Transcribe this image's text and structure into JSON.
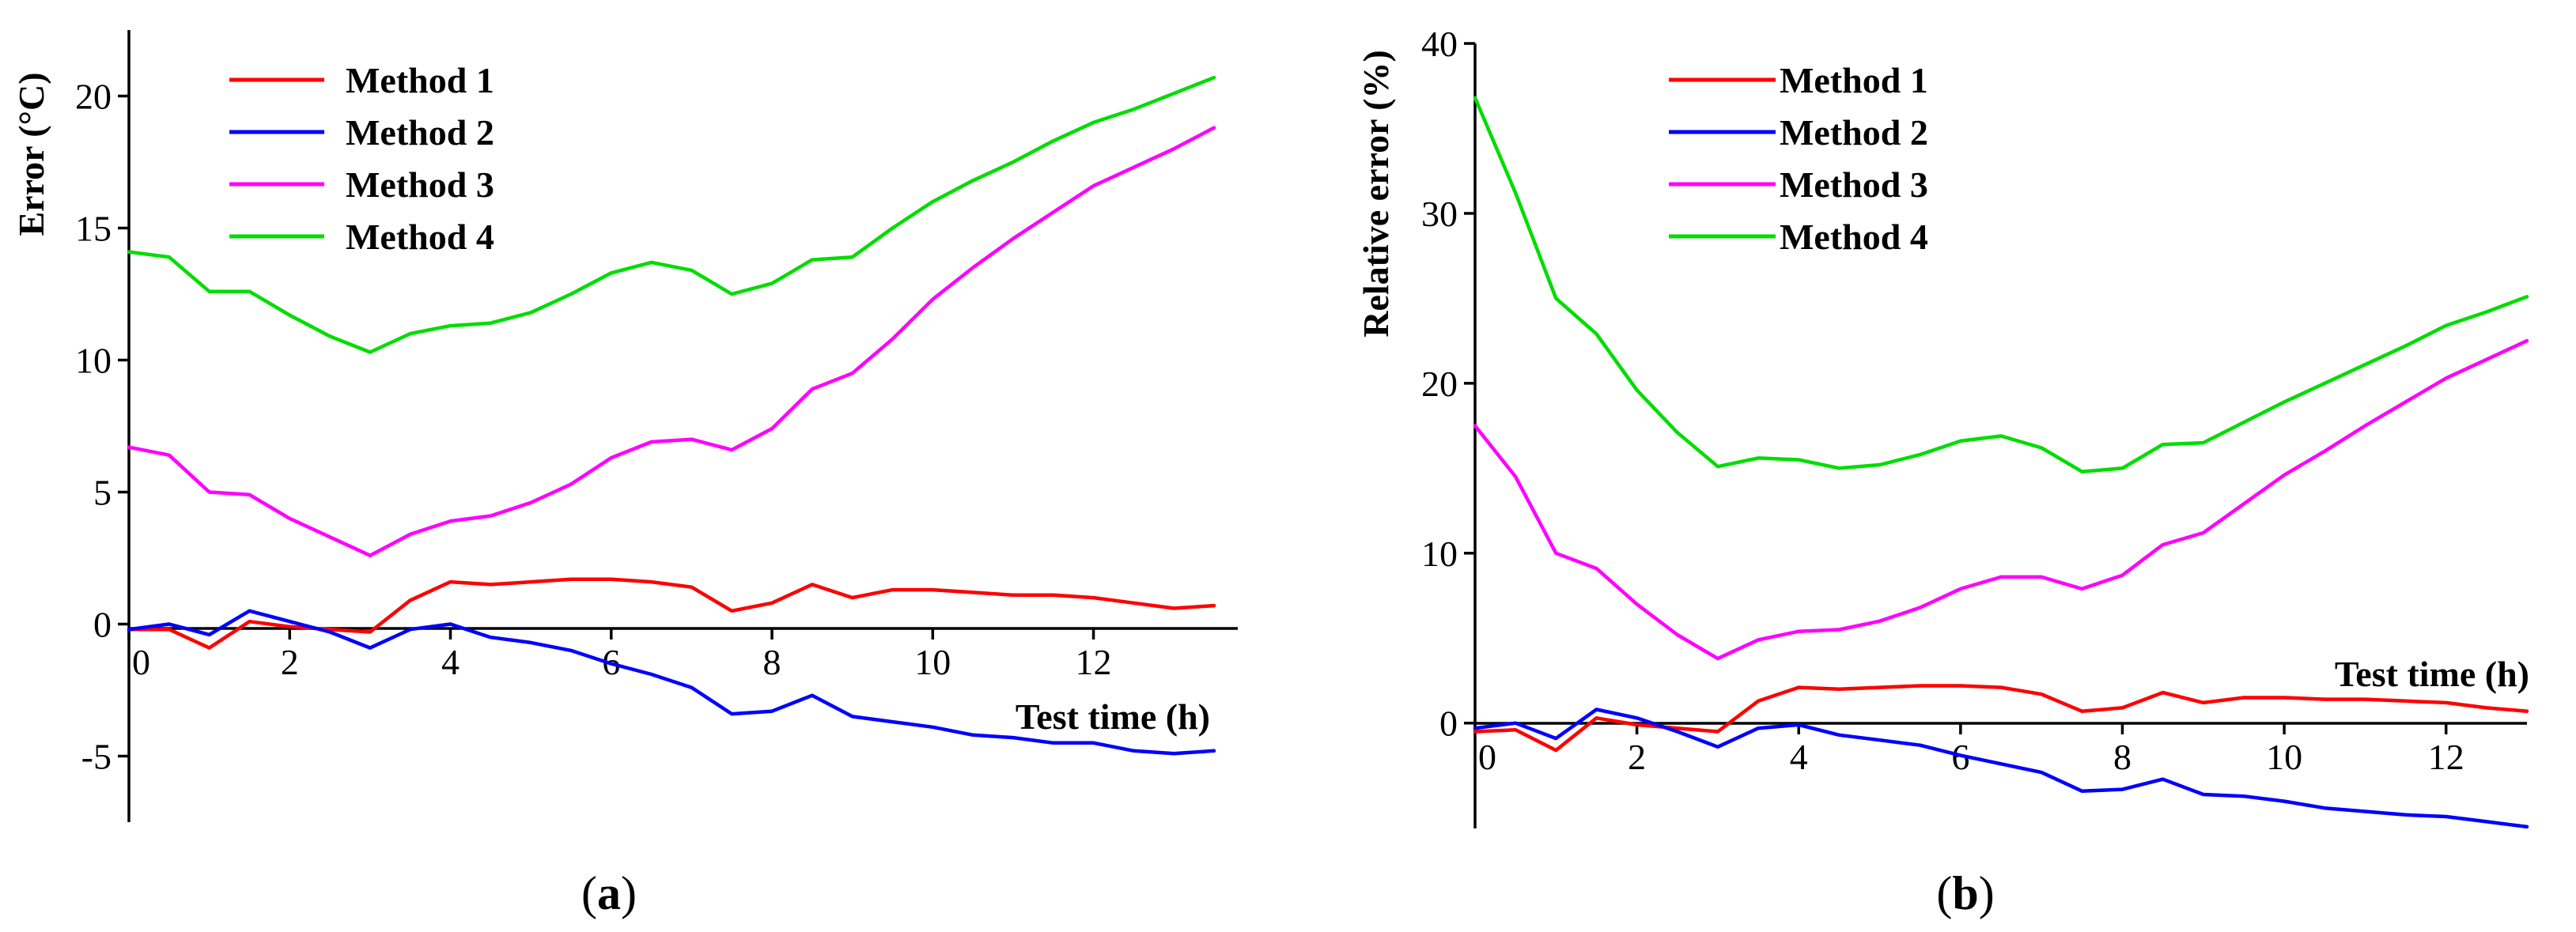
{
  "chart_data": [
    {
      "id": "a",
      "type": "line",
      "panel_label": "(a)",
      "panel_letter": "a",
      "ylabel": "Error (°C)",
      "xlabel": "Test time (h)",
      "xlim": [
        0,
        13.5
      ],
      "ylim": [
        -7.5,
        22.5
      ],
      "xticks": [
        0,
        2,
        4,
        6,
        8,
        10,
        12
      ],
      "yticks": [
        -5,
        0,
        5,
        10,
        15,
        20
      ],
      "legend_position": "top-left",
      "x": [
        0,
        0.5,
        1,
        1.5,
        2,
        2.5,
        3,
        3.5,
        4,
        4.5,
        5,
        5.5,
        6,
        6.5,
        7,
        7.5,
        8,
        8.5,
        9,
        9.5,
        10,
        10.5,
        11,
        11.5,
        12,
        12.5,
        13,
        13.5
      ],
      "series": [
        {
          "name": "Method 1",
          "color": "#ff0000",
          "values": [
            -0.2,
            -0.2,
            -0.9,
            0.1,
            -0.1,
            -0.2,
            -0.3,
            0.9,
            1.6,
            1.5,
            1.6,
            1.7,
            1.7,
            1.6,
            1.4,
            0.5,
            0.8,
            1.5,
            1.0,
            1.3,
            1.3,
            1.2,
            1.1,
            1.1,
            1.0,
            0.8,
            0.6,
            0.7
          ]
        },
        {
          "name": "Method 2",
          "color": "#0000ff",
          "values": [
            -0.2,
            0.0,
            -0.4,
            0.5,
            0.1,
            -0.3,
            -0.9,
            -0.2,
            0.0,
            -0.5,
            -0.7,
            -1.0,
            -1.5,
            -1.9,
            -2.4,
            -3.4,
            -3.3,
            -2.7,
            -3.5,
            -3.7,
            -3.9,
            -4.2,
            -4.3,
            -4.5,
            -4.5,
            -4.8,
            -4.9,
            -4.8
          ]
        },
        {
          "name": "Method 3",
          "color": "#ff00ff",
          "values": [
            6.7,
            6.4,
            5.0,
            4.9,
            4.0,
            3.3,
            2.6,
            3.4,
            3.9,
            4.1,
            4.6,
            5.3,
            6.3,
            6.9,
            7.0,
            6.6,
            7.4,
            8.9,
            9.5,
            10.8,
            12.3,
            13.5,
            14.6,
            15.6,
            16.6,
            17.3,
            18.0,
            18.8
          ]
        },
        {
          "name": "Method 4",
          "color": "#00dd00",
          "values": [
            14.1,
            13.9,
            12.6,
            12.6,
            11.7,
            10.9,
            10.3,
            11.0,
            11.3,
            11.4,
            11.8,
            12.5,
            13.3,
            13.7,
            13.4,
            12.5,
            12.9,
            13.8,
            13.9,
            15.0,
            16.0,
            16.8,
            17.5,
            18.3,
            19.0,
            19.5,
            20.1,
            20.7
          ]
        }
      ]
    },
    {
      "id": "b",
      "type": "line",
      "panel_label": "(b)",
      "panel_letter": "b",
      "ylabel": "Relative error (%)",
      "xlabel": "Test time (h)",
      "xlim": [
        0,
        13
      ],
      "ylim": [
        -6.2,
        40
      ],
      "xticks": [
        0,
        2,
        4,
        6,
        8,
        10,
        12
      ],
      "yticks": [
        0,
        10,
        20,
        30,
        40
      ],
      "legend_position": "top-left",
      "x": [
        0,
        0.5,
        1,
        1.5,
        2,
        2.5,
        3,
        3.5,
        4,
        4.5,
        5,
        5.5,
        6,
        6.5,
        7,
        7.5,
        8,
        8.5,
        9,
        9.5,
        10,
        10.5,
        11,
        11.5,
        12,
        12.5,
        13
      ],
      "series": [
        {
          "name": "Method 1",
          "color": "#ff0000",
          "values": [
            -0.5,
            -0.4,
            -1.6,
            0.3,
            -0.1,
            -0.3,
            -0.5,
            1.3,
            2.1,
            2.0,
            2.1,
            2.2,
            2.2,
            2.1,
            1.7,
            0.7,
            0.9,
            1.8,
            1.2,
            1.5,
            1.5,
            1.4,
            1.4,
            1.3,
            1.2,
            0.9,
            0.7
          ]
        },
        {
          "name": "Method 2",
          "color": "#0000ff",
          "values": [
            -0.3,
            0.0,
            -0.9,
            0.8,
            0.3,
            -0.5,
            -1.4,
            -0.3,
            -0.1,
            -0.7,
            -1.0,
            -1.3,
            -1.9,
            -2.4,
            -2.9,
            -4.0,
            -3.9,
            -3.3,
            -4.2,
            -4.3,
            -4.6,
            -5.0,
            -5.2,
            -5.4,
            -5.5,
            -5.8,
            -6.1
          ]
        },
        {
          "name": "Method 3",
          "color": "#ff00ff",
          "values": [
            17.5,
            14.5,
            10.0,
            9.1,
            7.0,
            5.2,
            3.8,
            4.9,
            5.4,
            5.5,
            6.0,
            6.8,
            7.9,
            8.6,
            8.6,
            7.9,
            8.7,
            10.5,
            11.2,
            12.9,
            14.6,
            16.0,
            17.5,
            18.9,
            20.3,
            21.4,
            22.5
          ]
        },
        {
          "name": "Method 4",
          "color": "#00dd00",
          "values": [
            36.8,
            31.2,
            25.0,
            22.9,
            19.6,
            17.1,
            15.1,
            15.6,
            15.5,
            15.0,
            15.2,
            15.8,
            16.6,
            16.9,
            16.2,
            14.8,
            15.0,
            16.4,
            16.5,
            17.7,
            18.9,
            20.0,
            21.1,
            22.2,
            23.4,
            24.2,
            25.1
          ]
        }
      ]
    }
  ]
}
